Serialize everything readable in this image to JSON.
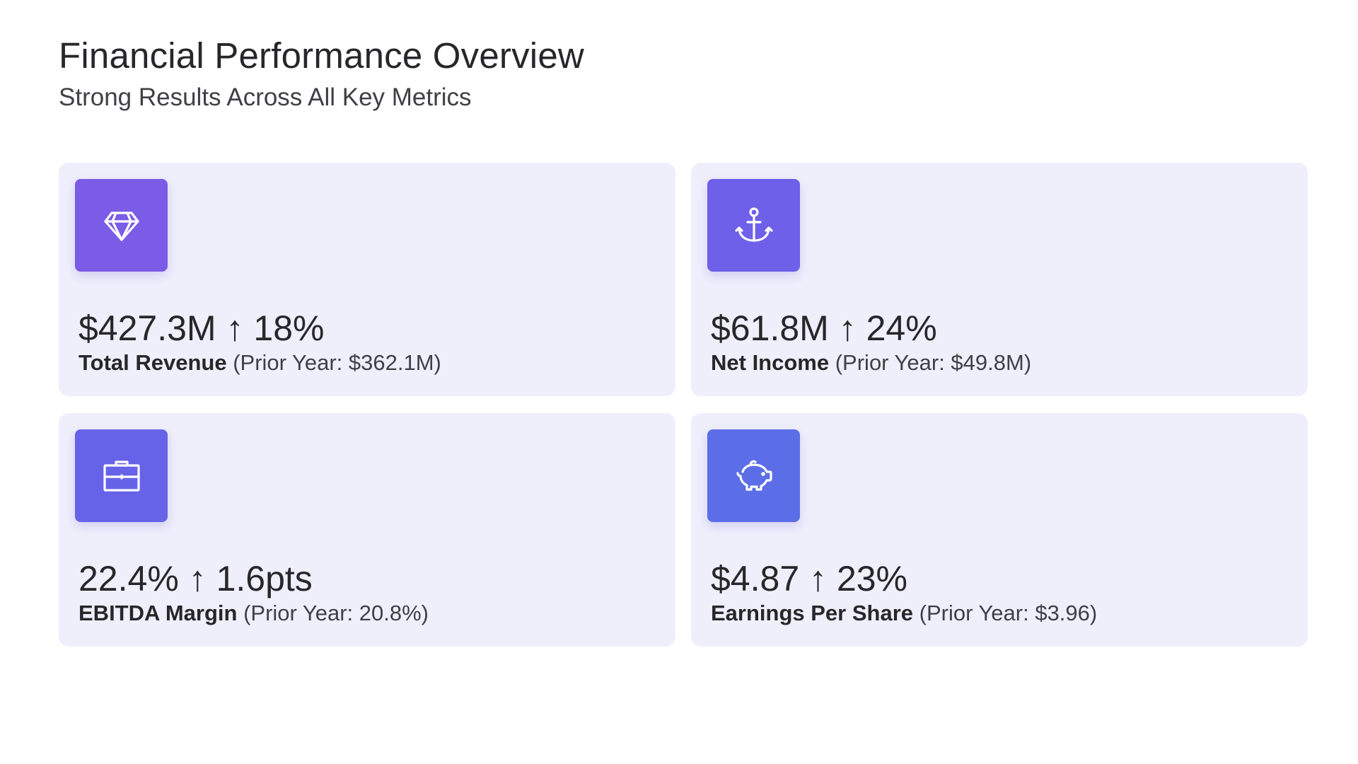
{
  "header": {
    "title": "Financial Performance Overview",
    "subtitle": "Strong Results Across All Key Metrics"
  },
  "cards": [
    {
      "icon": "diamond-icon",
      "icon_color": "#7b5ce6",
      "value": "$427.3M",
      "arrow": "↑",
      "change": "18%",
      "label": "Total Revenue",
      "prior": "(Prior Year: $362.1M)"
    },
    {
      "icon": "anchor-icon",
      "icon_color": "#6e60e8",
      "value": "$61.8M",
      "arrow": "↑",
      "change": "24%",
      "label": "Net Income",
      "prior": "(Prior Year: $49.8M)"
    },
    {
      "icon": "briefcase-icon",
      "icon_color": "#6663e9",
      "value": "22.4%",
      "arrow": "↑",
      "change": "1.6pts",
      "label": "EBITDA Margin",
      "prior": "(Prior Year: 20.8%)"
    },
    {
      "icon": "piggy-bank-icon",
      "icon_color": "#5b6ee8",
      "value": "$4.87",
      "arrow": "↑",
      "change": "23%",
      "label": "Earnings Per Share",
      "prior": "(Prior Year: $3.96)"
    }
  ],
  "colors": {
    "card_background": "#efeefb",
    "text_primary": "#27272a"
  }
}
